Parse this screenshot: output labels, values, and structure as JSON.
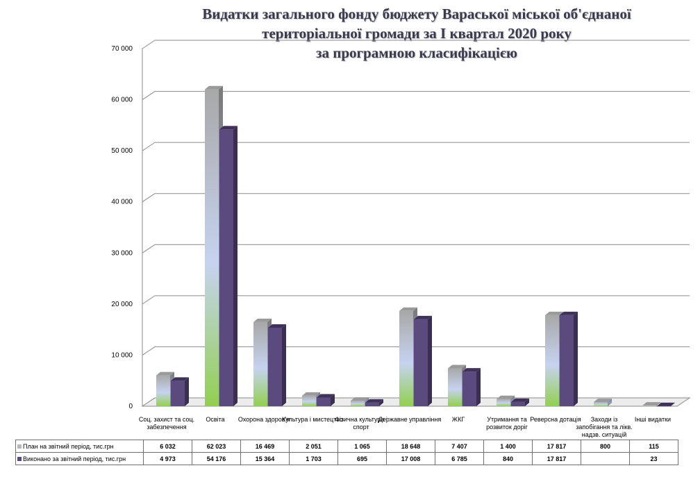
{
  "title": {
    "line1": "Видатки загального фонду бюджету Вараської міської об'єднаної",
    "line2": "територіальної громади за І квартал 2020 року",
    "line3": "за програмною класифікацією"
  },
  "chart_data": {
    "type": "bar",
    "categories": [
      "Соц. захист та соц. забезпечення",
      "Освіта",
      "Охорона здоров'я",
      "Культура і мистецтво",
      "Фізична культура і спорт",
      "Державне управління",
      "ЖКГ",
      "Утримання та розвиток доріг",
      "Реверсна дотація",
      "Заходи із запобігання та лікв. надзв. ситуацій",
      "Інші видатки"
    ],
    "series": [
      {
        "name": "План на звітний період, тис.грн",
        "values": [
          6032,
          62023,
          16469,
          2051,
          1065,
          18648,
          7407,
          1400,
          17817,
          800,
          115
        ],
        "labels": [
          "6 032",
          "62 023",
          "16 469",
          "2 051",
          "1 065",
          "18 648",
          "7 407",
          "1 400",
          "17 817",
          "800",
          "115"
        ]
      },
      {
        "name": "Виконано за звітний період, тис.грн",
        "values": [
          4973,
          54176,
          15364,
          1703,
          695,
          17008,
          6785,
          840,
          17817,
          null,
          23
        ],
        "labels": [
          "4 973",
          "54 176",
          "15 364",
          "1 703",
          "695",
          "17 008",
          "6 785",
          "840",
          "17 817",
          "",
          "23"
        ]
      }
    ],
    "ylim": [
      0,
      70000
    ],
    "yticks": [
      0,
      10000,
      20000,
      30000,
      40000,
      50000,
      60000,
      70000
    ],
    "ytick_labels": [
      "0",
      "10 000",
      "20 000",
      "30 000",
      "40 000",
      "50 000",
      "60 000",
      "70 000"
    ],
    "grid": true,
    "legend": "data-table"
  },
  "colors": {
    "plan_top": "#b8b8b8",
    "plan_mid": "#c6d3f0",
    "plan_bottom": "#92d050",
    "done_front": "#5b4a7e",
    "done_side": "#3a2e54",
    "grid": "#8a8a8a"
  }
}
